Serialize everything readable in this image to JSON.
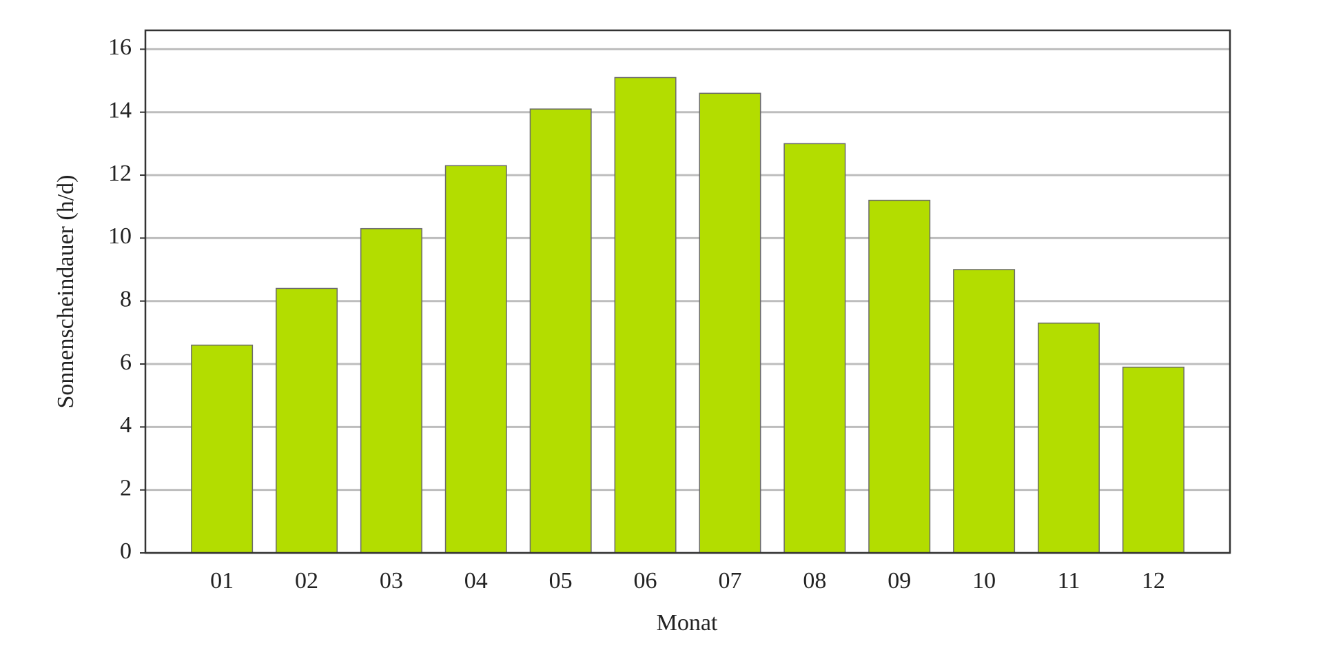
{
  "chart_data": {
    "type": "bar",
    "categories": [
      "01",
      "02",
      "03",
      "04",
      "05",
      "06",
      "07",
      "08",
      "09",
      "10",
      "11",
      "12"
    ],
    "values": [
      6.6,
      8.4,
      10.3,
      12.3,
      14.1,
      15.1,
      14.6,
      13.0,
      11.2,
      9.0,
      7.3,
      5.9
    ],
    "color": "#b3dd00",
    "x_label": "Monat",
    "y_label": "Sonnenscheindauer (h/d)",
    "ylim": [
      0,
      16.6
    ],
    "yticks": [
      0,
      2,
      4,
      6,
      8,
      10,
      12,
      14,
      16
    ],
    "grid": true
  }
}
